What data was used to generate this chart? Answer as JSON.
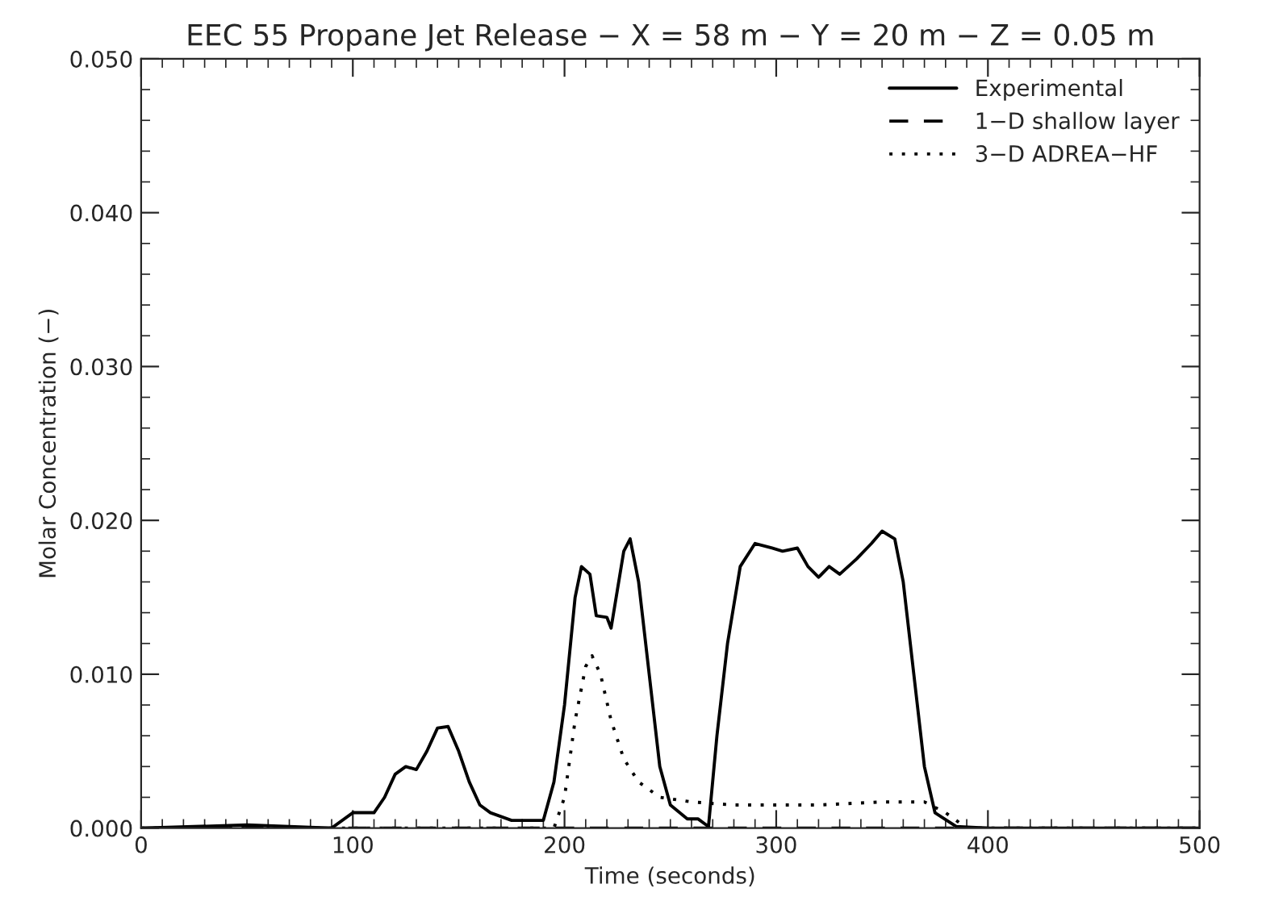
{
  "chart_data": {
    "type": "line",
    "title": "EEC 55 Propane Jet Release − X = 58 m − Y = 20 m − Z = 0.05 m",
    "xlabel": "Time (seconds)",
    "ylabel": "Molar Concentration (−)",
    "xlim": [
      0,
      500
    ],
    "xticks": [
      0,
      100,
      200,
      300,
      400,
      500
    ],
    "ylim": [
      0,
      0.05
    ],
    "yticks": [
      {
        "value": 0,
        "label": "0.000"
      },
      {
        "value": 0.01,
        "label": "0.010"
      },
      {
        "value": 0.02,
        "label": "0.020"
      },
      {
        "value": 0.03,
        "label": "0.030"
      },
      {
        "value": 0.04,
        "label": "0.040"
      },
      {
        "value": 0.05,
        "label": "0.050"
      }
    ],
    "grid": false,
    "legend": "top right",
    "marker": "none",
    "series": [
      {
        "name": "Experimental",
        "color": "#000000",
        "line_style": "solid",
        "x": [
          0,
          50,
          90,
          100,
          110,
          115,
          120,
          125,
          130,
          135,
          140,
          145,
          150,
          155,
          160,
          165,
          175,
          190,
          195,
          200,
          205,
          208,
          212,
          215,
          220,
          222,
          228,
          231,
          235,
          240,
          245,
          250,
          258,
          263,
          268,
          272,
          277,
          283,
          290,
          298,
          303,
          310,
          315,
          320,
          325,
          330,
          338,
          345,
          350,
          356,
          360,
          365,
          370,
          375,
          385,
          400,
          500
        ],
        "values": [
          0,
          0.0002,
          0,
          0.001,
          0.001,
          0.002,
          0.0035,
          0.004,
          0.0038,
          0.005,
          0.0065,
          0.0066,
          0.005,
          0.003,
          0.0015,
          0.001,
          0.0005,
          0.0005,
          0.003,
          0.008,
          0.015,
          0.017,
          0.0165,
          0.0138,
          0.0137,
          0.013,
          0.018,
          0.0188,
          0.016,
          0.01,
          0.004,
          0.0015,
          0.0006,
          0.0006,
          0.0001,
          0.006,
          0.012,
          0.017,
          0.0185,
          0.0182,
          0.018,
          0.0182,
          0.017,
          0.0163,
          0.017,
          0.0165,
          0.0175,
          0.0185,
          0.0193,
          0.0188,
          0.016,
          0.01,
          0.004,
          0.001,
          0.0001,
          0,
          0
        ]
      },
      {
        "name": "1−D shallow layer",
        "color": "#000000",
        "line_style": "dashed",
        "x": [
          0,
          500
        ],
        "values": [
          0,
          0
        ]
      },
      {
        "name": "3−D ADREA−HF",
        "color": "#000000",
        "line_style": "dotted",
        "x": [
          0,
          195,
          200,
          205,
          210,
          213,
          217,
          222,
          228,
          235,
          245,
          260,
          280,
          320,
          350,
          370,
          380,
          390,
          500
        ],
        "values": [
          0,
          0,
          0.002,
          0.007,
          0.0105,
          0.0112,
          0.01,
          0.007,
          0.0045,
          0.003,
          0.002,
          0.0017,
          0.0015,
          0.0015,
          0.0017,
          0.0017,
          0.001,
          0,
          0
        ]
      }
    ]
  }
}
